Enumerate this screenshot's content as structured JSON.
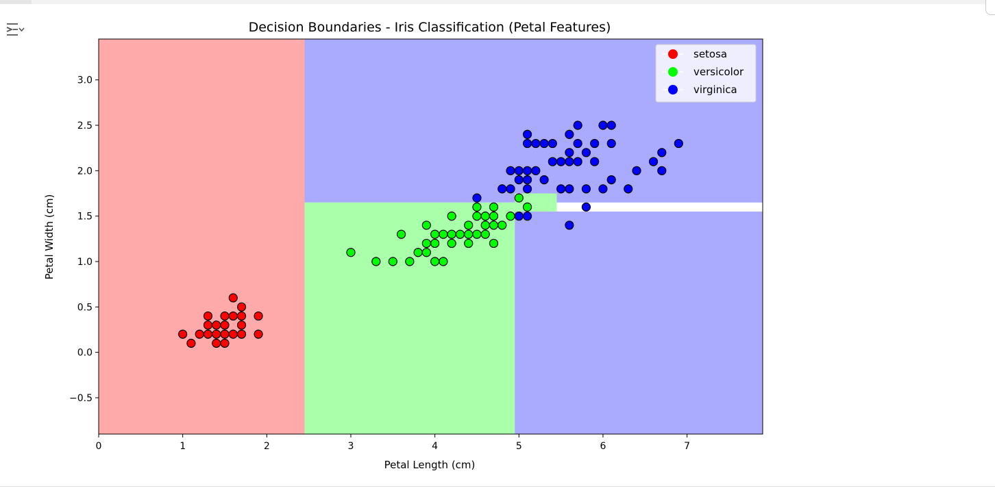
{
  "toolbar": {
    "output_toggle_icon": "output-toggle-icon"
  },
  "chart_data": {
    "type": "scatter",
    "title": "Decision Boundaries - Iris Classification (Petal Features)",
    "xlabel": "Petal Length (cm)",
    "ylabel": "Petal Width (cm)",
    "xlim": [
      0,
      7.9
    ],
    "ylim": [
      -0.9,
      3.45
    ],
    "xticks": [
      0,
      1,
      2,
      3,
      4,
      5,
      6,
      7
    ],
    "yticks": [
      -0.5,
      0.0,
      0.5,
      1.0,
      1.5,
      2.0,
      2.5,
      3.0
    ],
    "ytick_labels": [
      "−0.5",
      "0.0",
      "0.5",
      "1.0",
      "1.5",
      "2.0",
      "2.5",
      "3.0"
    ],
    "grid": false,
    "legend_position": "top-right",
    "regions": [
      {
        "class": "setosa",
        "x": [
          0,
          2.45
        ],
        "y": [
          -0.9,
          3.45
        ],
        "color": "#ffaaaa"
      },
      {
        "class": "virginica",
        "x": [
          2.45,
          7.9
        ],
        "y": [
          1.65,
          3.45
        ],
        "color": "#aaaaff"
      },
      {
        "class": "versicolor",
        "x": [
          2.45,
          4.95
        ],
        "y": [
          -0.9,
          1.65
        ],
        "color": "#aaffaa"
      },
      {
        "class": "virginica",
        "x": [
          4.95,
          7.9
        ],
        "y": [
          -0.9,
          1.55
        ],
        "color": "#aaaaff"
      },
      {
        "class": "versicolor",
        "x": [
          4.95,
          5.45
        ],
        "y": [
          1.55,
          1.75
        ],
        "color": "#aaffaa"
      }
    ],
    "series": [
      {
        "name": "setosa",
        "color": "#ff0000",
        "points": [
          [
            1.0,
            0.2
          ],
          [
            1.1,
            0.1
          ],
          [
            1.2,
            0.2
          ],
          [
            1.3,
            0.2
          ],
          [
            1.3,
            0.3
          ],
          [
            1.3,
            0.4
          ],
          [
            1.4,
            0.1
          ],
          [
            1.4,
            0.2
          ],
          [
            1.4,
            0.3
          ],
          [
            1.5,
            0.1
          ],
          [
            1.5,
            0.2
          ],
          [
            1.5,
            0.3
          ],
          [
            1.5,
            0.4
          ],
          [
            1.6,
            0.2
          ],
          [
            1.6,
            0.4
          ],
          [
            1.6,
            0.6
          ],
          [
            1.7,
            0.2
          ],
          [
            1.7,
            0.3
          ],
          [
            1.7,
            0.4
          ],
          [
            1.7,
            0.5
          ],
          [
            1.9,
            0.2
          ],
          [
            1.9,
            0.4
          ]
        ]
      },
      {
        "name": "versicolor",
        "color": "#00ff00",
        "points": [
          [
            3.0,
            1.1
          ],
          [
            3.3,
            1.0
          ],
          [
            3.5,
            1.0
          ],
          [
            3.6,
            1.3
          ],
          [
            3.7,
            1.0
          ],
          [
            3.8,
            1.1
          ],
          [
            3.9,
            1.1
          ],
          [
            3.9,
            1.2
          ],
          [
            3.9,
            1.4
          ],
          [
            4.0,
            1.0
          ],
          [
            4.0,
            1.2
          ],
          [
            4.0,
            1.3
          ],
          [
            4.1,
            1.0
          ],
          [
            4.1,
            1.3
          ],
          [
            4.2,
            1.2
          ],
          [
            4.2,
            1.3
          ],
          [
            4.2,
            1.5
          ],
          [
            4.3,
            1.3
          ],
          [
            4.4,
            1.2
          ],
          [
            4.4,
            1.3
          ],
          [
            4.4,
            1.4
          ],
          [
            4.5,
            1.3
          ],
          [
            4.5,
            1.5
          ],
          [
            4.5,
            1.6
          ],
          [
            4.6,
            1.3
          ],
          [
            4.6,
            1.4
          ],
          [
            4.6,
            1.5
          ],
          [
            4.7,
            1.2
          ],
          [
            4.7,
            1.4
          ],
          [
            4.7,
            1.5
          ],
          [
            4.7,
            1.6
          ],
          [
            4.8,
            1.4
          ],
          [
            4.9,
            1.5
          ],
          [
            5.0,
            1.7
          ],
          [
            5.1,
            1.6
          ]
        ]
      },
      {
        "name": "virginica",
        "color": "#0000ff",
        "points": [
          [
            4.5,
            1.7
          ],
          [
            4.8,
            1.8
          ],
          [
            4.9,
            1.8
          ],
          [
            4.9,
            2.0
          ],
          [
            5.0,
            1.5
          ],
          [
            5.0,
            1.9
          ],
          [
            5.0,
            2.0
          ],
          [
            5.1,
            1.5
          ],
          [
            5.1,
            1.8
          ],
          [
            5.1,
            1.9
          ],
          [
            5.1,
            2.0
          ],
          [
            5.1,
            2.3
          ],
          [
            5.1,
            2.4
          ],
          [
            5.2,
            2.0
          ],
          [
            5.2,
            2.3
          ],
          [
            5.3,
            1.9
          ],
          [
            5.3,
            2.3
          ],
          [
            5.4,
            2.1
          ],
          [
            5.4,
            2.3
          ],
          [
            5.5,
            1.8
          ],
          [
            5.5,
            2.1
          ],
          [
            5.6,
            1.4
          ],
          [
            5.6,
            1.8
          ],
          [
            5.6,
            2.1
          ],
          [
            5.6,
            2.2
          ],
          [
            5.6,
            2.4
          ],
          [
            5.7,
            2.1
          ],
          [
            5.7,
            2.3
          ],
          [
            5.7,
            2.5
          ],
          [
            5.8,
            1.6
          ],
          [
            5.8,
            1.8
          ],
          [
            5.8,
            2.2
          ],
          [
            5.9,
            2.1
          ],
          [
            5.9,
            2.3
          ],
          [
            6.0,
            1.8
          ],
          [
            6.0,
            2.5
          ],
          [
            6.1,
            1.9
          ],
          [
            6.1,
            2.3
          ],
          [
            6.1,
            2.5
          ],
          [
            6.3,
            1.8
          ],
          [
            6.4,
            2.0
          ],
          [
            6.6,
            2.1
          ],
          [
            6.7,
            2.0
          ],
          [
            6.7,
            2.2
          ],
          [
            6.9,
            2.3
          ]
        ]
      }
    ]
  }
}
